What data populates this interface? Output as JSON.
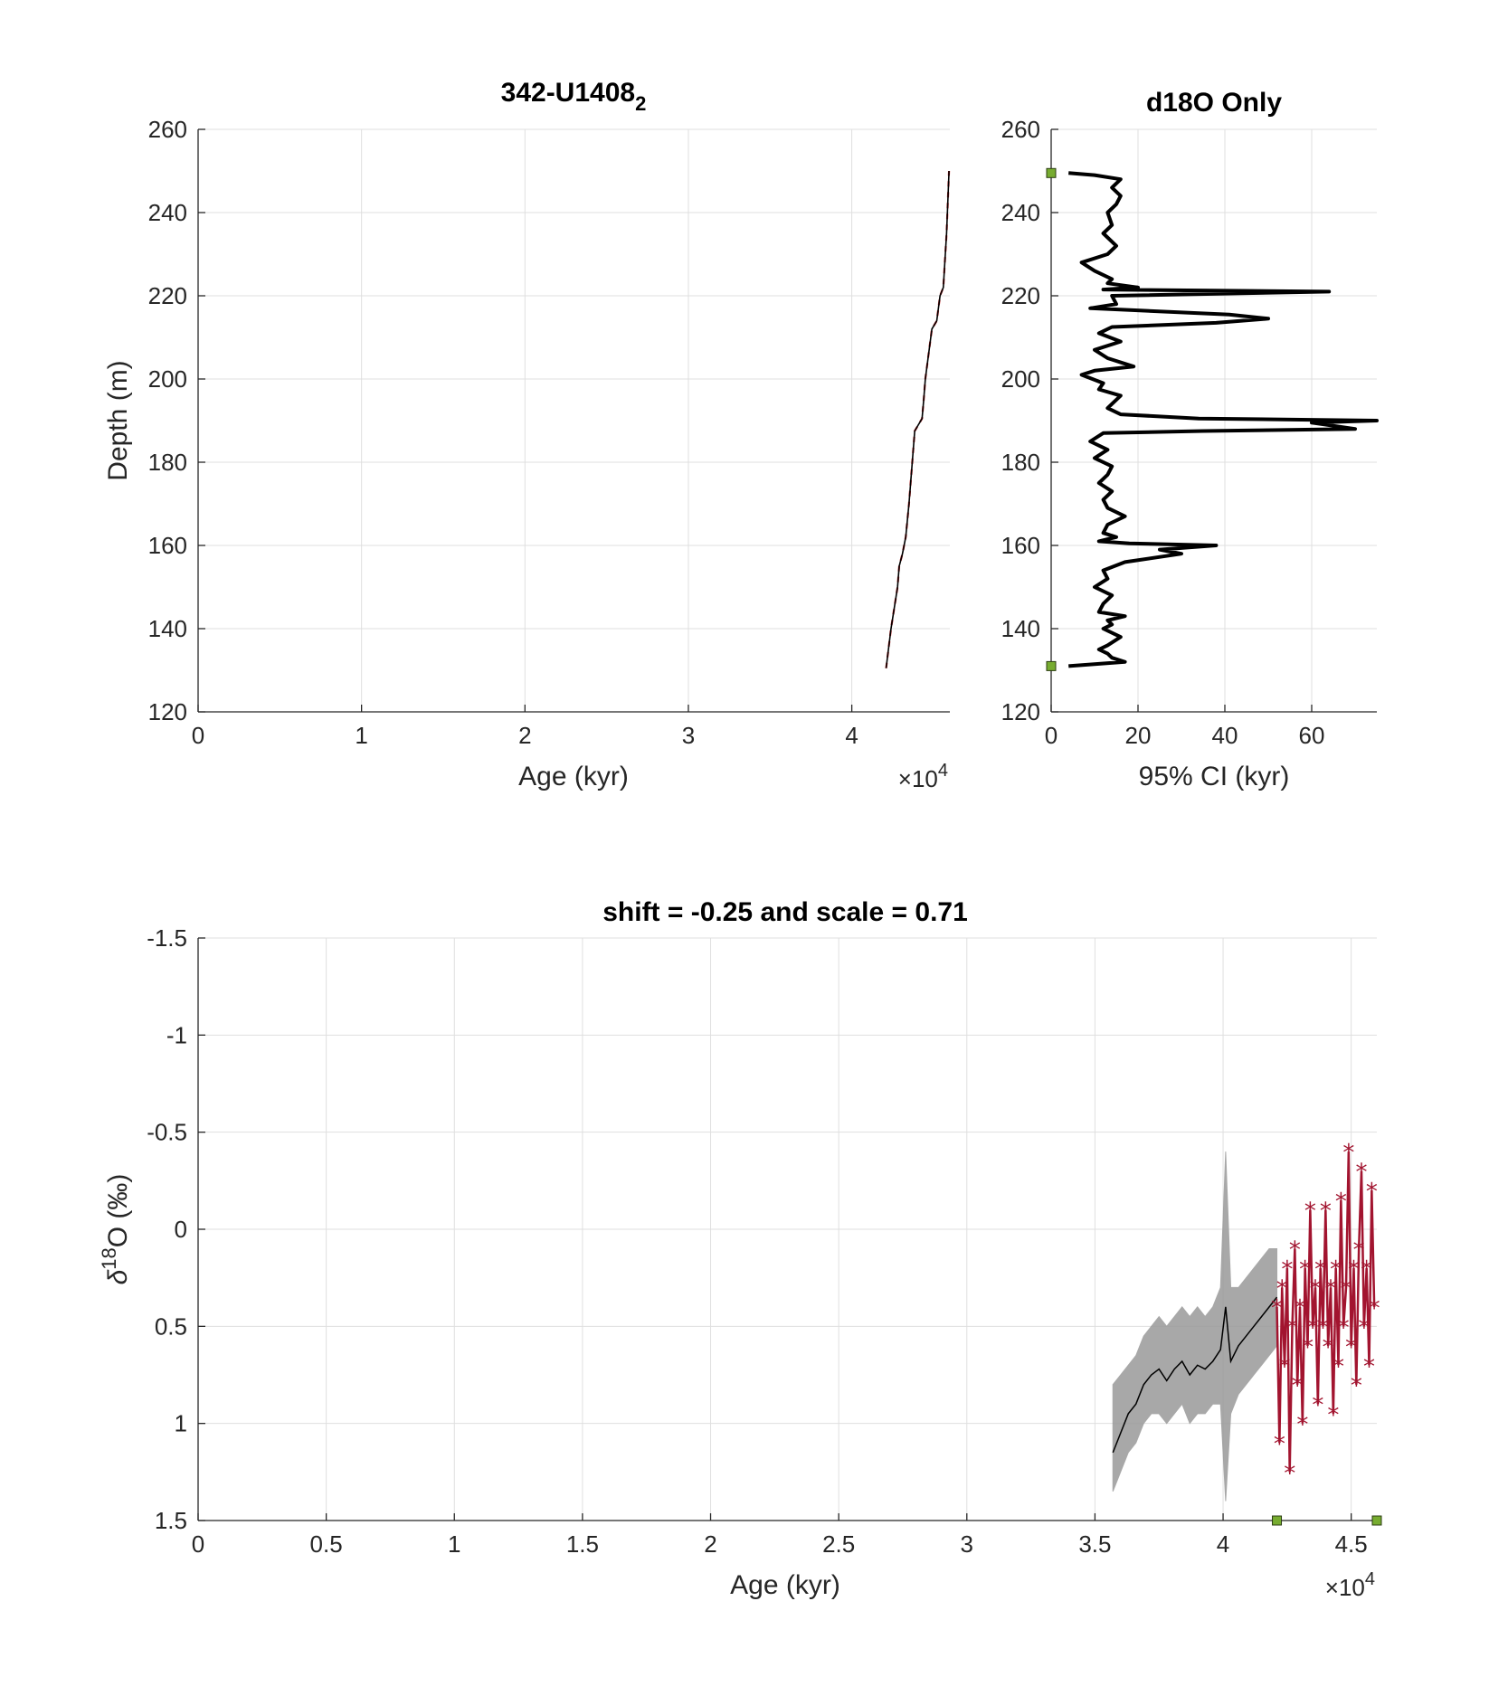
{
  "chart_data": [
    {
      "type": "line",
      "title": "342-U1408",
      "title_subscript": "2",
      "xlabel": "Age (kyr)",
      "ylabel": "Depth (m)",
      "x_exponent_base": "×10",
      "x_exponent": "4",
      "xlim": [
        0,
        46000
      ],
      "ylim": [
        120,
        260
      ],
      "xticks": [
        0,
        1,
        2,
        3,
        4
      ],
      "yticks": [
        120,
        140,
        160,
        180,
        200,
        220,
        240,
        260
      ],
      "grid": true,
      "series": [
        {
          "color": "#000000",
          "x": [
            42100,
            42400,
            42800,
            42900,
            43100,
            43300,
            43500,
            43700,
            43850,
            44000,
            44300,
            44400,
            44500,
            44700,
            44900,
            45200,
            45400,
            45600,
            45800,
            45950
          ],
          "y": [
            130.5,
            140,
            150,
            155,
            158,
            162,
            170,
            180,
            187.5,
            188.5,
            190.5,
            195,
            200,
            206,
            212,
            214,
            220,
            222,
            235,
            250
          ]
        }
      ]
    },
    {
      "type": "line",
      "title": "d18O Only",
      "xlabel": "95% CI (kyr)",
      "xlim": [
        0,
        75
      ],
      "ylim": [
        120,
        260
      ],
      "xticks": [
        0,
        20,
        40,
        60
      ],
      "yticks": [
        120,
        140,
        160,
        180,
        200,
        220,
        240,
        260
      ],
      "grid": true,
      "markers_color": "#77ac30",
      "markers": [
        [
          0,
          249.5
        ],
        [
          0,
          131
        ]
      ],
      "series": [
        {
          "color": "#000000",
          "x": [
            4,
            10,
            16,
            14,
            16,
            15,
            13,
            14,
            12,
            15,
            13,
            7,
            10,
            14,
            13,
            20,
            12,
            64,
            14,
            15,
            9,
            41,
            50,
            38,
            14,
            11,
            16,
            10,
            13,
            19,
            10,
            7,
            12,
            11,
            16,
            14,
            13,
            16,
            34,
            75,
            60,
            70,
            35,
            12,
            9,
            13,
            10,
            14,
            13,
            11,
            14,
            12,
            13,
            17,
            13,
            12,
            15,
            13,
            11,
            18,
            38,
            25,
            30,
            17,
            12,
            13,
            10,
            14,
            12,
            11,
            17,
            13,
            14,
            12,
            16,
            13,
            11,
            13,
            14,
            17,
            4
          ],
          "y": [
            249.5,
            249,
            248,
            246,
            244,
            242,
            240,
            237,
            235,
            232,
            230,
            228,
            226,
            224,
            223,
            222,
            221.5,
            221,
            220,
            218,
            217,
            215.5,
            214.5,
            213.5,
            212.5,
            211,
            209,
            207,
            205,
            203,
            202,
            201,
            199,
            197.5,
            196,
            194,
            193,
            191.5,
            190.5,
            190,
            189.5,
            188,
            187.5,
            187,
            185,
            183,
            181,
            179,
            177,
            175,
            173,
            171,
            169,
            167,
            165,
            163,
            162,
            161.5,
            161,
            160.5,
            160,
            159,
            158,
            156,
            154,
            152,
            150,
            148,
            146,
            144,
            143,
            142,
            141,
            140,
            138,
            136,
            135,
            134,
            133,
            132,
            131
          ]
        }
      ]
    },
    {
      "type": "line",
      "title": "shift = -0.25 and scale = 0.71",
      "xlabel": "Age (kyr)",
      "ylabel_base": "δ",
      "ylabel_sup": "18",
      "ylabel_tail": "O (‰)",
      "x_exponent_base": "×10",
      "x_exponent": "4",
      "xlim": [
        0,
        46000
      ],
      "ylim": [
        -1.5,
        1.5
      ],
      "y_reversed": true,
      "xticks": [
        "0",
        "0.5",
        "1",
        "1.5",
        "2",
        "2.5",
        "3",
        "3.5",
        "4",
        "4.5"
      ],
      "yticks": [
        "-1.5",
        "-1",
        "-0.5",
        "0",
        "0.5",
        "1",
        "1.5"
      ],
      "grid": true,
      "markers_color": "#77ac30",
      "markers": [
        [
          42100,
          1.5
        ],
        [
          46000,
          1.5
        ]
      ],
      "series": [
        {
          "name": "",
          "color": "#000000",
          "band_color": "#999999",
          "x": [
            35700,
            36000,
            36300,
            36600,
            36900,
            37200,
            37500,
            37800,
            38100,
            38400,
            38700,
            39000,
            39300,
            39600,
            39900,
            40100,
            40300,
            40600,
            40900,
            41200,
            41500,
            41800,
            42100
          ],
          "y": [
            1.15,
            1.05,
            0.95,
            0.9,
            0.8,
            0.75,
            0.72,
            0.78,
            0.72,
            0.68,
            0.75,
            0.7,
            0.72,
            0.68,
            0.62,
            0.4,
            0.68,
            0.6,
            0.55,
            0.5,
            0.45,
            0.4,
            0.35
          ],
          "band_lower": [
            1.35,
            1.25,
            1.15,
            1.1,
            1.0,
            0.95,
            0.95,
            1.0,
            0.95,
            0.9,
            1.0,
            0.95,
            0.95,
            0.9,
            0.9,
            1.4,
            0.95,
            0.85,
            0.8,
            0.75,
            0.7,
            0.65,
            0.6
          ],
          "band_upper": [
            0.8,
            0.75,
            0.7,
            0.65,
            0.55,
            0.5,
            0.45,
            0.5,
            0.45,
            0.4,
            0.45,
            0.4,
            0.45,
            0.4,
            0.3,
            -0.4,
            0.3,
            0.3,
            0.25,
            0.2,
            0.15,
            0.1,
            0.1
          ]
        },
        {
          "name": "",
          "color": "#a2142f",
          "marker": "*",
          "x": [
            42100,
            42200,
            42300,
            42400,
            42500,
            42600,
            42700,
            42800,
            42900,
            43000,
            43100,
            43200,
            43300,
            43400,
            43500,
            43600,
            43700,
            43800,
            43900,
            44000,
            44100,
            44200,
            44300,
            44400,
            44500,
            44600,
            44700,
            44800,
            44900,
            45000,
            45100,
            45200,
            45300,
            45400,
            45500,
            45600,
            45700,
            45800,
            45900
          ],
          "y": [
            0.4,
            1.1,
            0.3,
            0.7,
            0.2,
            1.25,
            0.5,
            0.1,
            0.8,
            0.4,
            1.0,
            0.2,
            0.6,
            -0.1,
            0.5,
            0.3,
            0.9,
            0.2,
            0.5,
            -0.1,
            0.6,
            0.3,
            0.95,
            0.2,
            0.7,
            -0.15,
            0.5,
            0.3,
            -0.4,
            0.6,
            0.2,
            0.8,
            0.1,
            -0.3,
            0.5,
            0.2,
            0.7,
            -0.2,
            0.4
          ]
        }
      ]
    }
  ]
}
